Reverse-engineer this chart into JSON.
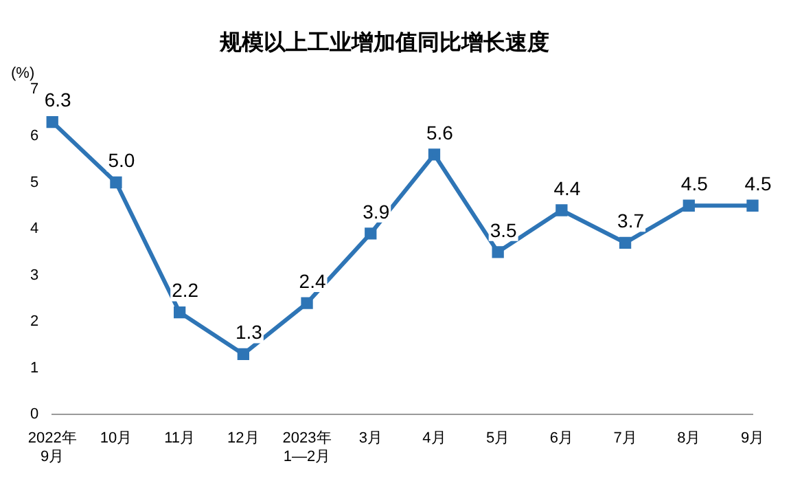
{
  "chart_data": {
    "type": "line",
    "title": "规模以上工业增加值同比增长速度",
    "ylabel": "(%)",
    "categories": [
      "2022年\n9月",
      "10月",
      "11月",
      "12月",
      "2023年\n1—2月",
      "3月",
      "4月",
      "5月",
      "6月",
      "7月",
      "8月",
      "9月"
    ],
    "series": [
      {
        "color": "#2e75b6",
        "values": [
          6.3,
          5.0,
          2.2,
          1.3,
          2.4,
          3.9,
          5.6,
          3.5,
          4.4,
          3.7,
          4.5,
          4.5
        ],
        "value_labels": [
          "6.3",
          "5.0",
          "2.2",
          "1.3",
          "2.4",
          "3.9",
          "5.6",
          "3.5",
          "4.4",
          "3.7",
          "4.5",
          "4.5"
        ]
      }
    ],
    "ylim": [
      0,
      7
    ],
    "yticks": [
      0,
      1,
      2,
      3,
      4,
      5,
      6,
      7
    ],
    "grid": false,
    "legend": false,
    "marker": "square",
    "line_style": "solid"
  }
}
